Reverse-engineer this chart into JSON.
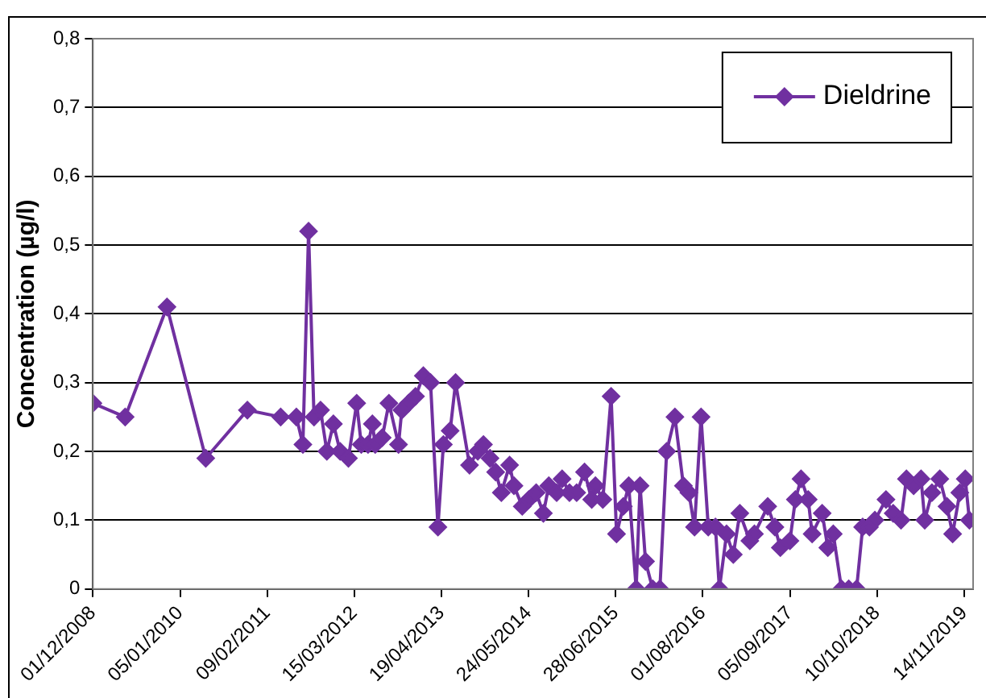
{
  "chart_data": {
    "type": "line",
    "ylabel": "Concentration (µg/l)",
    "x": [
      "2008-12-01",
      "2009-04-28",
      "2009-11-06",
      "2010-05-03",
      "2010-11-10",
      "2011-04-12",
      "2011-06-23",
      "2011-07-23",
      "2011-08-18",
      "2011-09-12",
      "2011-10-12",
      "2011-11-10",
      "2011-12-10",
      "2012-01-10",
      "2012-02-17",
      "2012-03-26",
      "2012-04-16",
      "2012-05-17",
      "2012-06-06",
      "2012-06-19",
      "2012-07-21",
      "2012-08-21",
      "2012-10-04",
      "2012-10-19",
      "2012-11-19",
      "2012-12-21",
      "2013-01-26",
      "2013-02-28",
      "2013-04-03",
      "2013-04-28",
      "2013-05-29",
      "2013-06-23",
      "2013-08-26",
      "2013-10-03",
      "2013-10-29",
      "2013-11-28",
      "2013-12-24",
      "2014-01-19",
      "2014-02-26",
      "2014-03-18",
      "2014-04-25",
      "2014-05-25",
      "2014-06-28",
      "2014-07-31",
      "2014-08-25",
      "2014-09-30",
      "2014-10-25",
      "2014-11-28",
      "2014-12-31",
      "2015-02-05",
      "2015-03-10",
      "2015-03-27",
      "2015-04-30",
      "2015-06-07",
      "2015-07-02",
      "2015-08-02",
      "2015-08-27",
      "2015-09-30",
      "2015-10-18",
      "2015-11-12",
      "2015-12-15",
      "2016-01-17",
      "2016-02-17",
      "2016-03-26",
      "2016-05-04",
      "2016-05-29",
      "2016-06-24",
      "2016-07-24",
      "2016-08-26",
      "2016-09-28",
      "2016-10-16",
      "2016-11-18",
      "2016-12-19",
      "2017-01-18",
      "2017-03-05",
      "2017-03-26",
      "2017-05-26",
      "2017-06-28",
      "2017-07-23",
      "2017-09-05",
      "2017-09-30",
      "2017-10-26",
      "2017-11-28",
      "2017-12-16",
      "2018-01-31",
      "2018-02-26",
      "2018-03-23",
      "2018-04-30",
      "2018-06-02",
      "2018-07-08",
      "2018-08-05",
      "2018-09-05",
      "2018-09-30",
      "2018-11-20",
      "2018-12-23",
      "2019-01-28",
      "2019-02-22",
      "2019-03-27",
      "2019-04-30",
      "2019-05-17",
      "2019-06-19",
      "2019-07-25",
      "2019-08-27",
      "2019-09-22",
      "2019-10-25",
      "2019-11-19",
      "2019-12-08"
    ],
    "series": [
      {
        "name": "Dieldrine",
        "color": "#7030a0",
        "values": [
          0.27,
          0.25,
          0.41,
          0.19,
          0.26,
          0.25,
          0.25,
          0.21,
          0.52,
          0.25,
          0.26,
          0.2,
          0.24,
          0.2,
          0.19,
          0.27,
          0.21,
          0.21,
          0.24,
          0.21,
          0.22,
          0.27,
          0.21,
          0.26,
          0.27,
          0.28,
          0.31,
          0.3,
          0.09,
          0.21,
          0.23,
          0.3,
          0.18,
          0.2,
          0.21,
          0.19,
          0.17,
          0.14,
          0.18,
          0.15,
          0.12,
          0.13,
          0.14,
          0.11,
          0.15,
          0.14,
          0.16,
          0.14,
          0.14,
          0.17,
          0.13,
          0.15,
          0.13,
          0.28,
          0.08,
          0.12,
          0.15,
          0,
          0.15,
          0.04,
          0,
          0,
          0.2,
          0.25,
          0.15,
          0.14,
          0.09,
          0.25,
          0.09,
          0.09,
          0,
          0.08,
          0.05,
          0.11,
          0.07,
          0.08,
          0.12,
          0.09,
          0.06,
          0.07,
          0.13,
          0.16,
          0.13,
          0.08,
          0.11,
          0.06,
          0.08,
          0,
          0,
          0,
          0.09,
          0.09,
          0.1,
          0.13,
          0.11,
          0.1,
          0.16,
          0.15,
          0.16,
          0.1,
          0.14,
          0.16,
          0.12,
          0.08,
          0.14,
          0.16,
          0.1
        ]
      }
    ],
    "xlim": [
      "2008-12-01",
      "2019-12-25"
    ],
    "xticks": [
      {
        "value": "2008-12-01",
        "label": "01/12/2008"
      },
      {
        "value": "2010-01-05",
        "label": "05/01/2010"
      },
      {
        "value": "2011-02-09",
        "label": "09/02/2011"
      },
      {
        "value": "2012-03-15",
        "label": "15/03/2012"
      },
      {
        "value": "2013-04-19",
        "label": "19/04/2013"
      },
      {
        "value": "2014-05-24",
        "label": "24/05/2014"
      },
      {
        "value": "2015-06-28",
        "label": "28/06/2015"
      },
      {
        "value": "2016-08-01",
        "label": "01/08/2016"
      },
      {
        "value": "2017-09-05",
        "label": "05/09/2017"
      },
      {
        "value": "2018-10-10",
        "label": "10/10/2018"
      },
      {
        "value": "2019-11-14",
        "label": "14/11/2019"
      }
    ],
    "ylim": [
      0,
      0.8
    ],
    "yticks": [
      0,
      {
        "value": 0.1,
        "label": "0,1"
      },
      {
        "value": 0.2,
        "label": "0,2"
      },
      {
        "value": 0.3,
        "label": "0,3"
      },
      {
        "value": 0.4,
        "label": "0,4"
      },
      {
        "value": 0.5,
        "label": "0,5"
      },
      {
        "value": 0.6,
        "label": "0,6"
      },
      {
        "value": 0.7,
        "label": "0,7"
      },
      {
        "value": 0.8,
        "label": "0,8"
      }
    ],
    "grid": "y",
    "legend": "top right",
    "marker": "diamond"
  }
}
